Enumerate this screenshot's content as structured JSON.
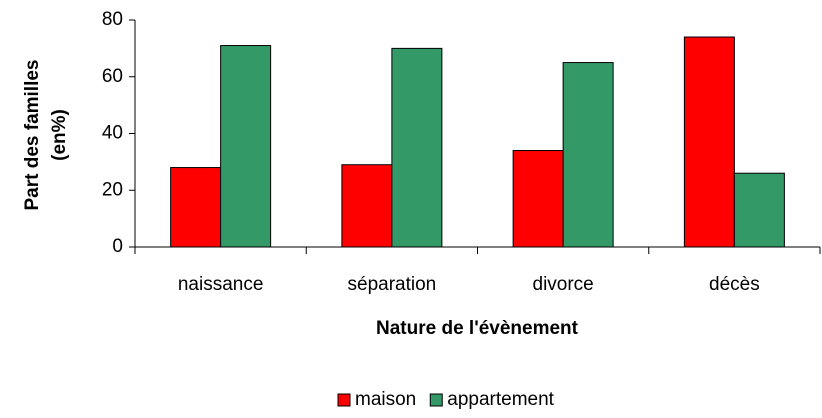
{
  "chart_data": {
    "type": "bar",
    "ylabel": [
      "Part des familles",
      "(en%)"
    ],
    "xlabel": "Nature de l'évènement",
    "categories": [
      "naissance",
      "séparation",
      "divorce",
      "décès"
    ],
    "series": [
      {
        "name": "maison",
        "color": "#ff0000",
        "values": [
          28,
          29,
          34,
          74
        ]
      },
      {
        "name": "appartement",
        "color": "#339966",
        "values": [
          71,
          70,
          65,
          26
        ]
      }
    ],
    "ylim": [
      0,
      80
    ],
    "yticks": [
      0,
      20,
      40,
      60,
      80
    ],
    "grid": false,
    "legend": "bottom"
  }
}
